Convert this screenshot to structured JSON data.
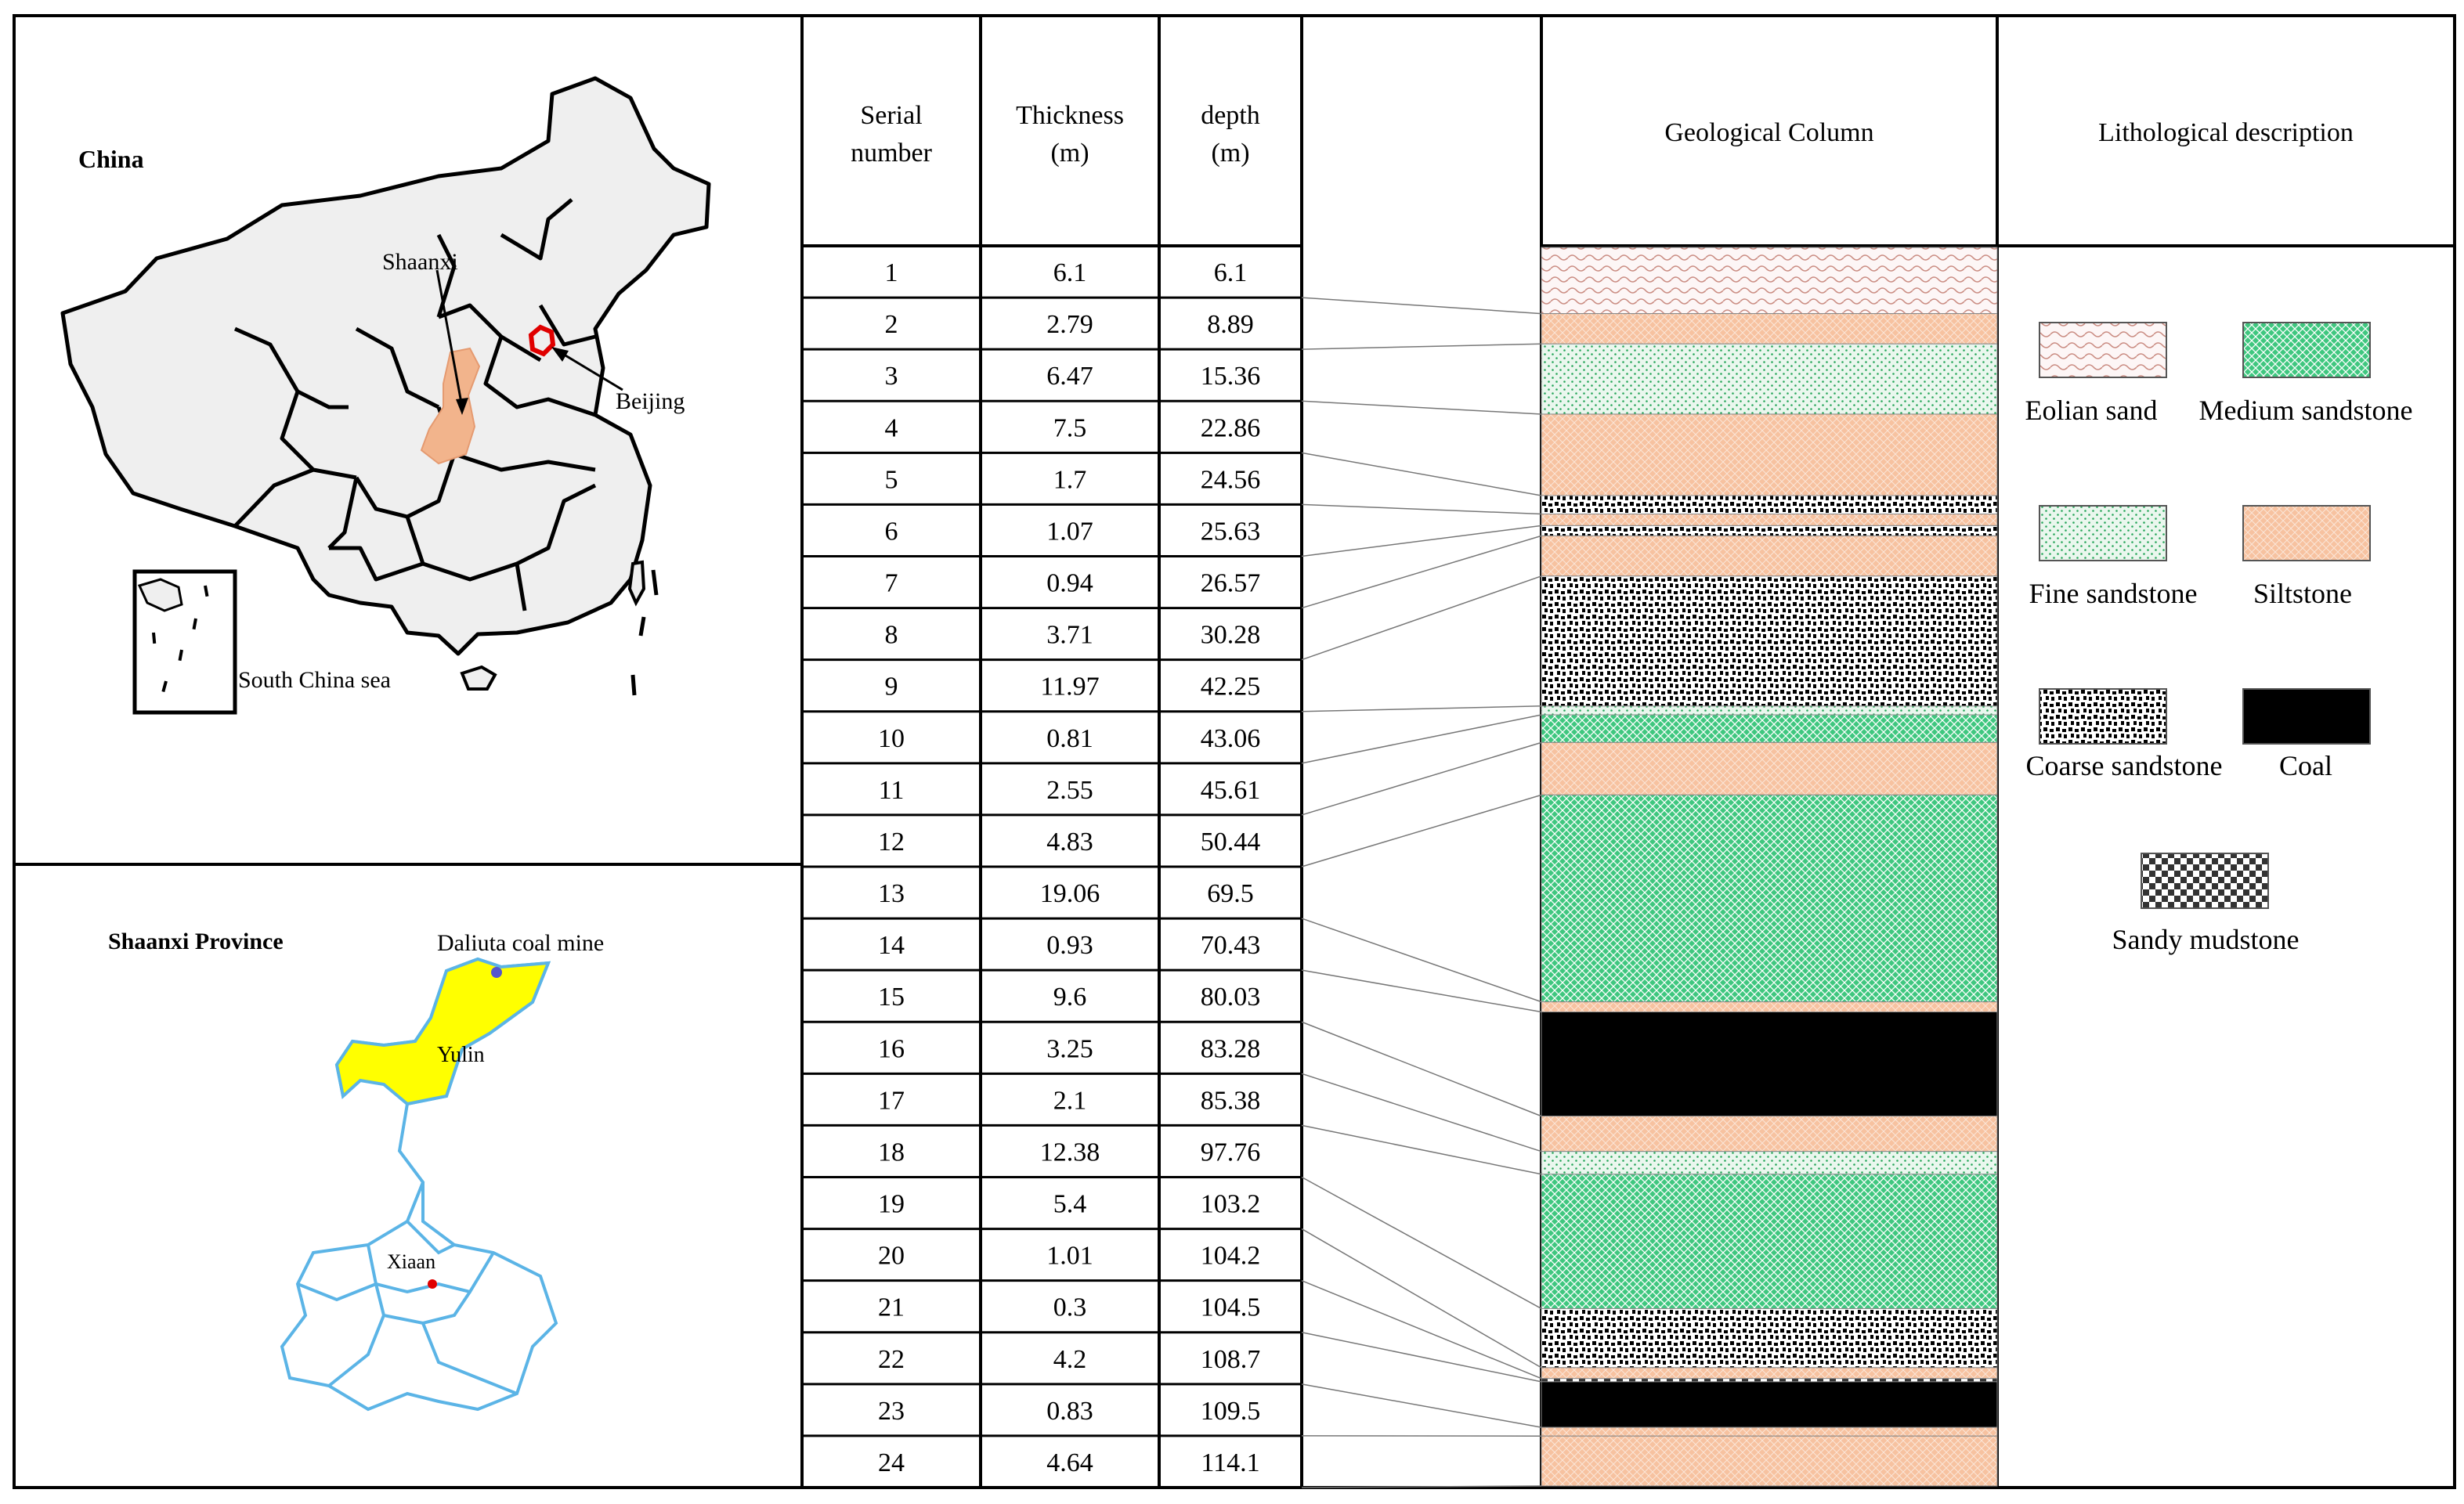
{
  "maps": {
    "china_title": "China",
    "shaanxi_label": "Shaanxi",
    "beijing_label": "Beijing",
    "south_china_sea_label": "South China sea",
    "province_title": "Shaanxi Province",
    "mine_label": "Daliuta coal mine",
    "yulin_label": "Yulin",
    "xiaan_label": "Xiaan"
  },
  "colors": {
    "shaanxi_fill": "#f2b48c",
    "beijing_outline": "#e00000",
    "yulin_fill": "#ffff00",
    "province_outline": "#5bb4e6",
    "siltstone": "#f7c4a3",
    "medium_sandstone": "#3fc77f",
    "fine_sandstone": "#e8f6ec",
    "coal": "#000000"
  },
  "table": {
    "headers": {
      "serial": [
        "Serial",
        "number"
      ],
      "thickness": [
        "Thickness",
        "(m)"
      ],
      "depth": [
        "depth",
        "(m)"
      ],
      "column": "Geological Column",
      "description": "Lithological description"
    },
    "rows": [
      {
        "serial": "1",
        "thickness": "6.1",
        "depth": "6.1"
      },
      {
        "serial": "2",
        "thickness": "2.79",
        "depth": "8.89"
      },
      {
        "serial": "3",
        "thickness": "6.47",
        "depth": "15.36"
      },
      {
        "serial": "4",
        "thickness": "7.5",
        "depth": "22.86"
      },
      {
        "serial": "5",
        "thickness": "1.7",
        "depth": "24.56"
      },
      {
        "serial": "6",
        "thickness": "1.07",
        "depth": "25.63"
      },
      {
        "serial": "7",
        "thickness": "0.94",
        "depth": "26.57"
      },
      {
        "serial": "8",
        "thickness": "3.71",
        "depth": "30.28"
      },
      {
        "serial": "9",
        "thickness": "11.97",
        "depth": "42.25"
      },
      {
        "serial": "10",
        "thickness": "0.81",
        "depth": "43.06"
      },
      {
        "serial": "11",
        "thickness": "2.55",
        "depth": "45.61"
      },
      {
        "serial": "12",
        "thickness": "4.83",
        "depth": "50.44"
      },
      {
        "serial": "13",
        "thickness": "19.06",
        "depth": "69.5"
      },
      {
        "serial": "14",
        "thickness": "0.93",
        "depth": "70.43"
      },
      {
        "serial": "15",
        "thickness": "9.6",
        "depth": "80.03"
      },
      {
        "serial": "16",
        "thickness": "3.25",
        "depth": "83.28"
      },
      {
        "serial": "17",
        "thickness": "2.1",
        "depth": "85.38"
      },
      {
        "serial": "18",
        "thickness": "12.38",
        "depth": "97.76"
      },
      {
        "serial": "19",
        "thickness": "5.4",
        "depth": "103.2"
      },
      {
        "serial": "20",
        "thickness": "1.01",
        "depth": "104.2"
      },
      {
        "serial": "21",
        "thickness": "0.3",
        "depth": "104.5"
      },
      {
        "serial": "22",
        "thickness": "4.2",
        "depth": "108.7"
      },
      {
        "serial": "23",
        "thickness": "0.83",
        "depth": "109.5"
      },
      {
        "serial": "24",
        "thickness": "4.64",
        "depth": "114.1"
      }
    ]
  },
  "column_layers": [
    {
      "lith": "eolian_sand"
    },
    {
      "lith": "siltstone"
    },
    {
      "lith": "fine_sandstone"
    },
    {
      "lith": "siltstone"
    },
    {
      "lith": "coarse_sandstone"
    },
    {
      "lith": "siltstone"
    },
    {
      "lith": "coarse_sandstone"
    },
    {
      "lith": "siltstone"
    },
    {
      "lith": "coarse_sandstone"
    },
    {
      "lith": "fine_sandstone"
    },
    {
      "lith": "medium_sandstone"
    },
    {
      "lith": "siltstone"
    },
    {
      "lith": "medium_sandstone"
    },
    {
      "lith": "siltstone"
    },
    {
      "lith": "coal"
    },
    {
      "lith": "siltstone"
    },
    {
      "lith": "fine_sandstone"
    },
    {
      "lith": "medium_sandstone"
    },
    {
      "lith": "coarse_sandstone"
    },
    {
      "lith": "siltstone"
    },
    {
      "lith": "sandy_mudstone"
    },
    {
      "lith": "coal"
    },
    {
      "lith": "siltstone"
    },
    {
      "lith": "siltstone"
    }
  ],
  "legend": [
    {
      "key": "eolian_sand",
      "label": "Eolian sand"
    },
    {
      "key": "medium_sandstone",
      "label": "Medium sandstone"
    },
    {
      "key": "fine_sandstone",
      "label": "Fine sandstone"
    },
    {
      "key": "siltstone",
      "label": "Siltstone"
    },
    {
      "key": "coarse_sandstone",
      "label": "Coarse sandstone"
    },
    {
      "key": "coal",
      "label": "Coal"
    },
    {
      "key": "sandy_mudstone",
      "label": "Sandy mudstone"
    }
  ]
}
